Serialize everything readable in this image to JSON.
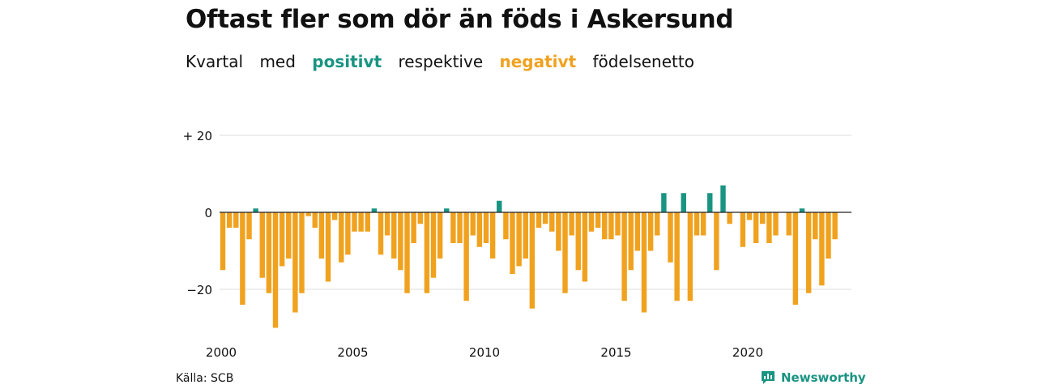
{
  "title": "Oftast fler som dör än föds i Askersund",
  "subtitle": {
    "w1": "Kvartal",
    "w2": "med",
    "positive": "positivt",
    "w3": "respektive",
    "negative": "negativt",
    "w4": "födelsenetto"
  },
  "source": "Källa: SCB",
  "brand": "Newsworthy",
  "icon": "newsworthy-logo-icon",
  "colors": {
    "positive": "#1a9482",
    "negative": "#f0a21f",
    "grid": "#dddddd",
    "zero": "#222222"
  },
  "chart_data": {
    "type": "bar",
    "xlabel": "",
    "ylabel": "",
    "ylim": [
      -30,
      20
    ],
    "y_ticks": [
      {
        "value": 20,
        "label": "+ 20"
      },
      {
        "value": 0,
        "label": "0"
      },
      {
        "value": -20,
        "label": "−20"
      }
    ],
    "x_ticks": [
      "2000",
      "2005",
      "2010",
      "2015",
      "2020"
    ],
    "grid": true,
    "categories": [
      "2000 K1",
      "2000 K2",
      "2000 K3",
      "2000 K4",
      "2001 K1",
      "2001 K2",
      "2001 K3",
      "2001 K4",
      "2002 K1",
      "2002 K2",
      "2002 K3",
      "2002 K4",
      "2003 K1",
      "2003 K2",
      "2003 K3",
      "2003 K4",
      "2004 K1",
      "2004 K2",
      "2004 K3",
      "2004 K4",
      "2005 K1",
      "2005 K2",
      "2005 K3",
      "2005 K4",
      "2006 K1",
      "2006 K2",
      "2006 K3",
      "2006 K4",
      "2007 K1",
      "2007 K2",
      "2007 K3",
      "2007 K4",
      "2008 K1",
      "2008 K2",
      "2008 K3",
      "2008 K4",
      "2009 K1",
      "2009 K2",
      "2009 K3",
      "2009 K4",
      "2010 K1",
      "2010 K2",
      "2010 K3",
      "2010 K4",
      "2011 K1",
      "2011 K2",
      "2011 K3",
      "2011 K4",
      "2012 K1",
      "2012 K2",
      "2012 K3",
      "2012 K4",
      "2013 K1",
      "2013 K2",
      "2013 K3",
      "2013 K4",
      "2014 K1",
      "2014 K2",
      "2014 K3",
      "2014 K4",
      "2015 K1",
      "2015 K2",
      "2015 K3",
      "2015 K4",
      "2016 K1",
      "2016 K2",
      "2016 K3",
      "2016 K4",
      "2017 K1",
      "2017 K2",
      "2017 K3",
      "2017 K4",
      "2018 K1",
      "2018 K2",
      "2018 K3",
      "2018 K4",
      "2019 K1",
      "2019 K2",
      "2019 K3",
      "2019 K4",
      "2020 K1",
      "2020 K2",
      "2020 K3",
      "2020 K4",
      "2021 K1",
      "2021 K2",
      "2021 K3",
      "2021 K4",
      "2022 K1",
      "2022 K2",
      "2022 K3",
      "2022 K4",
      "2023 K1",
      "2023 K2",
      "2023 K3",
      "2023 K4"
    ],
    "values": [
      -15,
      -4,
      -4,
      -24,
      -7,
      1,
      -17,
      -21,
      -30,
      -14,
      -12,
      -26,
      -21,
      -1,
      -4,
      -12,
      -18,
      -2,
      -13,
      -11,
      -5,
      -5,
      -5,
      1,
      -11,
      -6,
      -12,
      -15,
      -21,
      -8,
      -3,
      -21,
      -17,
      -12,
      1,
      -8,
      -8,
      -23,
      -6,
      -9,
      -8,
      -12,
      3,
      -7,
      -16,
      -14,
      -12,
      -25,
      -4,
      -3,
      -5,
      -10,
      -21,
      -6,
      -15,
      -18,
      -5,
      -4,
      -7,
      -7,
      -6,
      -23,
      -15,
      -10,
      -26,
      -10,
      -6,
      5,
      -13,
      -23,
      5,
      -23,
      -6,
      -6,
      5,
      -15,
      7,
      -3,
      0,
      -9,
      -2,
      -8,
      -3,
      -8,
      -6,
      0,
      -6,
      -24,
      1,
      -21,
      -7,
      -19,
      -12,
      -7,
      0,
      0
    ]
  }
}
